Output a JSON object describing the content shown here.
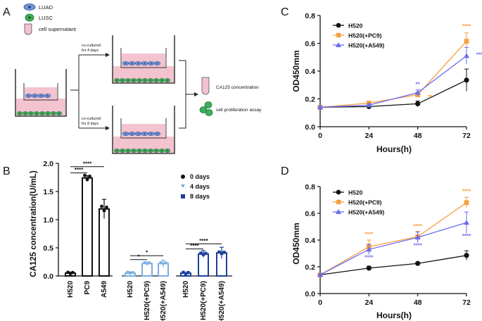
{
  "panel_letters": {
    "a": "A",
    "b": "B",
    "c": "C",
    "d": "D"
  },
  "schematic": {
    "legend": [
      "LUAD",
      "LUSC",
      "cell supernatant"
    ],
    "arrow_top": [
      "co-cultured",
      "for 4 days"
    ],
    "arrow_bottom": [
      "co-cultured",
      "for 8 days"
    ],
    "outputs": [
      "CA125 concentration",
      "cell proliferation assay"
    ]
  },
  "colors": {
    "luad": "#6f95d6",
    "lusc": "#3fae5a",
    "supernatant": "#f3c3cf",
    "black": "#111111",
    "orange": "#f5a040",
    "purple": "#6b6bf0",
    "day4": "#79aee0",
    "day8": "#1c3f9a"
  },
  "chart_data": [
    {
      "panel": "B",
      "type": "bar",
      "ylabel": "CA125 concentration(U/mL)",
      "ylim": [
        0,
        2.0
      ],
      "yticks": [
        "0.0",
        "0.5",
        "1.0",
        "1.5",
        "2.0"
      ],
      "legend": [
        "0 days",
        "4 days",
        "8 days"
      ],
      "groups": [
        {
          "name": "0 days",
          "categories": [
            "H520",
            "PC9",
            "A549"
          ],
          "values": [
            0.05,
            1.74,
            1.19
          ],
          "errors": [
            0.02,
            0.04,
            0.17
          ]
        },
        {
          "name": "4 days",
          "categories": [
            "H520",
            "H520(+PC9)",
            "H520(+A549)"
          ],
          "values": [
            0.05,
            0.22,
            0.22
          ],
          "errors": [
            0.02,
            0.03,
            0.06
          ]
        },
        {
          "name": "8 days",
          "categories": [
            "H520",
            "H520(+PC9)",
            "H520(+A549)"
          ],
          "values": [
            0.05,
            0.39,
            0.41
          ],
          "errors": [
            0.01,
            0.06,
            0.1
          ]
        }
      ],
      "significance": [
        "****",
        "****",
        "*",
        "*",
        "****",
        "****"
      ]
    },
    {
      "panel": "C",
      "type": "line",
      "xlabel": "Hours(h)",
      "ylabel": "OD450mm",
      "x": [
        0,
        24,
        48,
        72
      ],
      "xlim": [
        0,
        72
      ],
      "ylim": [
        0,
        0.8
      ],
      "xticks": [
        "0",
        "24",
        "48",
        "72"
      ],
      "yticks": [
        "0.0",
        "0.2",
        "0.4",
        "0.6",
        "0.8"
      ],
      "legend_position": "top-left",
      "series": [
        {
          "name": "H520",
          "values": [
            0.14,
            0.145,
            0.165,
            0.335
          ],
          "errors": [
            0.01,
            0.01,
            0.02,
            0.08
          ]
        },
        {
          "name": "H520(+PC9)",
          "values": [
            0.14,
            0.17,
            0.23,
            0.615
          ],
          "errors": [
            0.01,
            0.01,
            0.02,
            0.06
          ]
        },
        {
          "name": "H520(+A549)",
          "values": [
            0.14,
            0.155,
            0.245,
            0.51
          ],
          "errors": [
            0.01,
            0.01,
            0.02,
            0.06
          ]
        }
      ],
      "annotations": [
        "**",
        "**",
        "****",
        "****"
      ]
    },
    {
      "panel": "D",
      "type": "line",
      "xlabel": "Hours(h)",
      "ylabel": "OD450mm",
      "x": [
        0,
        24,
        48,
        72
      ],
      "xlim": [
        0,
        72
      ],
      "ylim": [
        0,
        0.8
      ],
      "xticks": [
        "0",
        "24",
        "48",
        "72"
      ],
      "yticks": [
        "0.0",
        "0.2",
        "0.4",
        "0.6",
        "0.8"
      ],
      "legend_position": "top-left",
      "series": [
        {
          "name": "H520",
          "values": [
            0.14,
            0.19,
            0.225,
            0.285
          ],
          "errors": [
            0.01,
            0.015,
            0.01,
            0.035
          ]
        },
        {
          "name": "H520(+PC9)",
          "values": [
            0.14,
            0.35,
            0.425,
            0.68
          ],
          "errors": [
            0.01,
            0.05,
            0.04,
            0.04
          ]
        },
        {
          "name": "H520(+A549)",
          "values": [
            0.14,
            0.33,
            0.42,
            0.53
          ],
          "errors": [
            0.01,
            0.04,
            0.04,
            0.08
          ]
        }
      ],
      "annotations": [
        "****",
        "****",
        "****",
        "****",
        "****",
        "****"
      ]
    }
  ]
}
